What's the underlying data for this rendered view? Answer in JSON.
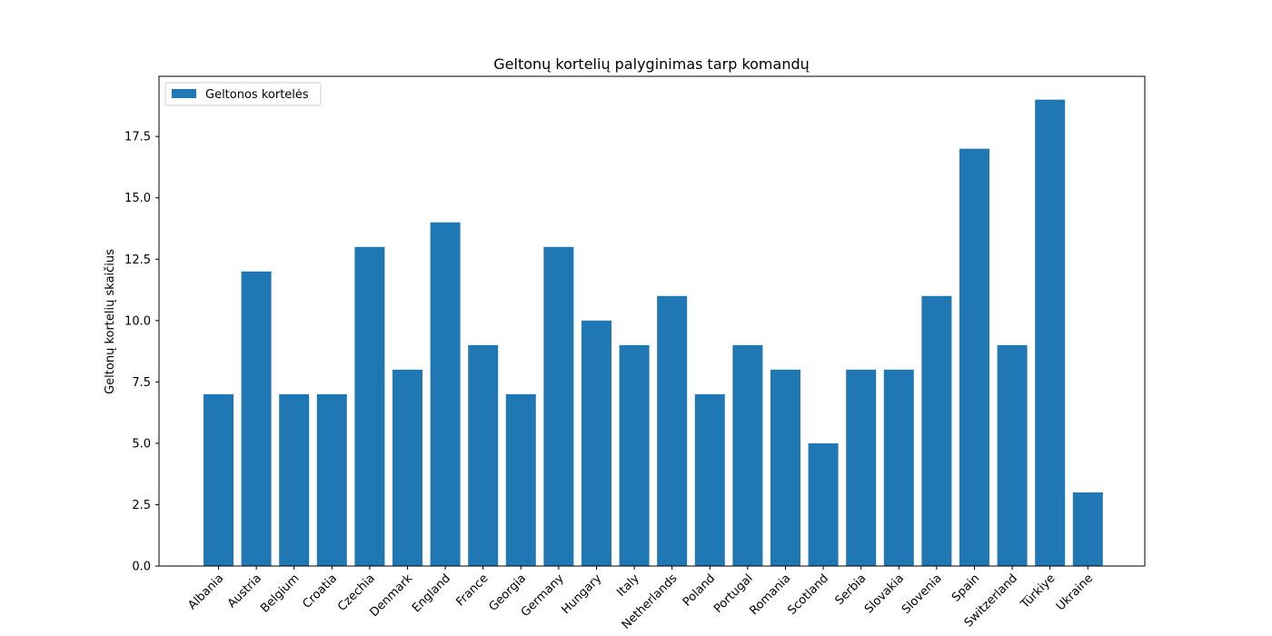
{
  "chart_data": {
    "type": "bar",
    "title": "Geltonų kortelių palyginimas tarp komandų",
    "xlabel": "",
    "ylabel": "Geltonų kortelių skaičius",
    "categories": [
      "Albania",
      "Austria",
      "Belgium",
      "Croatia",
      "Czechia",
      "Denmark",
      "England",
      "France",
      "Georgia",
      "Germany",
      "Hungary",
      "Italy",
      "Netherlands",
      "Poland",
      "Portugal",
      "Romania",
      "Scotland",
      "Serbia",
      "Slovakia",
      "Slovenia",
      "Spain",
      "Switzerland",
      "Türkiye",
      "Ukraine"
    ],
    "series": [
      {
        "name": "Geltonos kortelės",
        "color": "#1f77b4",
        "values": [
          7,
          12,
          7,
          7,
          13,
          8,
          14,
          9,
          7,
          13,
          10,
          9,
          11,
          7,
          9,
          8,
          5,
          8,
          8,
          11,
          17,
          9,
          19,
          3
        ]
      }
    ],
    "ylim": [
      0,
      19.95
    ],
    "yticks": [
      0.0,
      2.5,
      5.0,
      7.5,
      10.0,
      12.5,
      15.0,
      17.5
    ],
    "ytick_labels": [
      "0.0",
      "2.5",
      "5.0",
      "7.5",
      "10.0",
      "12.5",
      "15.0",
      "17.5"
    ],
    "xtick_rotation": 45,
    "legend_position": "upper-left",
    "grid": false
  }
}
